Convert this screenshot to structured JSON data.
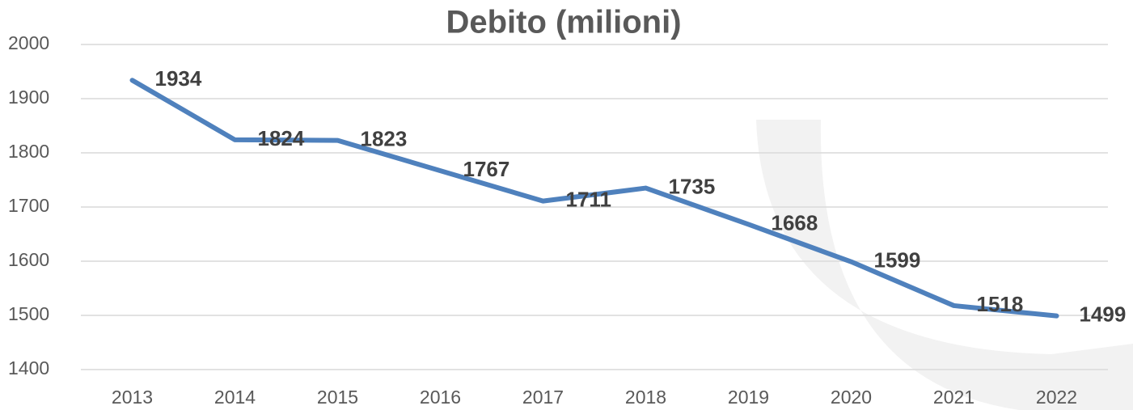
{
  "chart_data": {
    "type": "line",
    "title": "Debito (milioni)",
    "categories": [
      "2013",
      "2014",
      "2015",
      "2016",
      "2017",
      "2018",
      "2019",
      "2020",
      "2021",
      "2022"
    ],
    "values": [
      1934,
      1824,
      1823,
      1767,
      1711,
      1735,
      1668,
      1599,
      1518,
      1499
    ],
    "color": "#4f81bd",
    "ylim": [
      1400,
      2000
    ],
    "yticks": [
      1400,
      1500,
      1600,
      1700,
      1800,
      1900,
      2000
    ],
    "grid": true
  }
}
